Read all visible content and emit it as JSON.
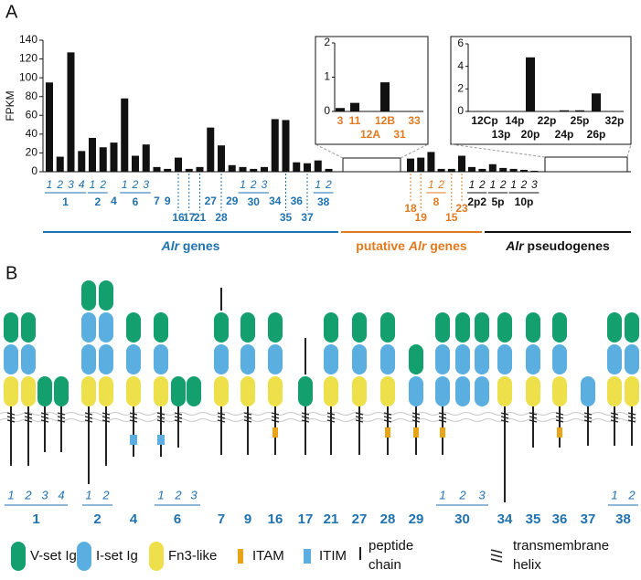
{
  "panel_labels": [
    "A",
    "B"
  ],
  "chart_data": [
    {
      "type": "bar",
      "y_label": "FPKM",
      "ylim": [
        0,
        140
      ],
      "yticks": [
        0,
        20,
        40,
        60,
        80,
        100,
        120,
        140
      ],
      "color": "#111111",
      "categories": [
        "1",
        "2",
        "3",
        "4",
        "1",
        "2",
        "4",
        "1",
        "2",
        "3",
        "7",
        "9",
        "16",
        "17",
        "21",
        "27",
        "28",
        "29",
        "1",
        "2",
        "3",
        "34",
        "35",
        "36",
        "37",
        "1",
        "2",
        "18",
        "19",
        "1",
        "2",
        "15",
        "23",
        "1",
        "2",
        "1",
        "2",
        "1",
        "2",
        "3"
      ],
      "values": [
        95,
        16,
        127,
        22,
        36,
        26,
        31,
        78,
        17,
        29,
        5,
        3,
        15,
        3,
        5,
        47,
        28,
        7,
        5,
        3,
        5,
        56,
        55,
        10,
        9,
        12,
        3,
        14,
        15,
        21,
        3,
        3,
        17,
        5,
        3,
        8,
        4,
        3,
        2,
        1
      ],
      "groups": [
        {
          "label": "1",
          "first": 0,
          "last": 3
        },
        {
          "label": "2",
          "first": 4,
          "last": 5
        },
        {
          "label": "6",
          "first": 7,
          "last": 9
        },
        {
          "label": "30",
          "first": 18,
          "last": 20
        },
        {
          "label": "38",
          "first": 25,
          "last": 26
        },
        {
          "label": "8",
          "first": 29,
          "last": 30
        },
        {
          "label": "2p2",
          "first": 33,
          "last": 34
        },
        {
          "label": "5p",
          "first": 35,
          "last": 36
        },
        {
          "label": "10p",
          "first": 37,
          "last": 39
        }
      ],
      "sections": [
        {
          "parts": [
            {
              "text": "Alr",
              "italic": true
            },
            {
              "text": " genes",
              "italic": false
            }
          ],
          "color": "#1f72b0",
          "first": 0,
          "last": 26
        },
        {
          "parts": [
            {
              "text": "putative ",
              "italic": false
            },
            {
              "text": "Alr",
              "italic": true
            },
            {
              "text": " genes",
              "italic": false
            }
          ],
          "color": "#e07a20",
          "first": 27,
          "last": 32
        },
        {
          "parts": [
            {
              "text": "Alr",
              "italic": true
            },
            {
              "text": " pseudogenes",
              "italic": false
            }
          ],
          "color": "#111111",
          "first": 33,
          "last": 39
        }
      ]
    },
    {
      "type": "bar",
      "ylim": [
        0,
        2
      ],
      "yticks": [
        0,
        1,
        2
      ],
      "color": "#111111",
      "label_color": "#e07a20",
      "categories": [
        "3",
        "11",
        "12A",
        "12B",
        "31",
        "33"
      ],
      "values": [
        0.1,
        0.25,
        0,
        0.85,
        0,
        0
      ]
    },
    {
      "type": "bar",
      "ylim": [
        0,
        6
      ],
      "yticks": [
        0,
        2,
        4,
        6
      ],
      "color": "#111111",
      "label_color": "#111111",
      "categories": [
        "12Cp",
        "13p",
        "14p",
        "20p",
        "22p",
        "24p",
        "25p",
        "26p",
        "32p"
      ],
      "values": [
        0,
        0,
        0,
        4.8,
        0,
        0.1,
        0.1,
        1.6,
        0
      ]
    }
  ],
  "panel_b": {
    "genes": [
      {
        "label": "1",
        "sublabels": [
          "1",
          "2",
          "3",
          "4"
        ]
      },
      {
        "label": "2",
        "sublabels": [
          "1",
          "2"
        ]
      },
      {
        "label": "4"
      },
      {
        "label": "6",
        "sublabels": [
          "1",
          "2",
          "3"
        ]
      },
      {
        "label": "7"
      },
      {
        "label": "9"
      },
      {
        "label": "16"
      },
      {
        "label": "17"
      },
      {
        "label": "21"
      },
      {
        "label": "27"
      },
      {
        "label": "28"
      },
      {
        "label": "29"
      },
      {
        "label": "30",
        "sublabels": [
          "1",
          "2",
          "3"
        ]
      },
      {
        "label": "34"
      },
      {
        "label": "35"
      },
      {
        "label": "36"
      },
      {
        "label": "37"
      },
      {
        "label": "38",
        "sublabels": [
          "1",
          "2"
        ]
      }
    ],
    "legend": [
      {
        "lines": [
          "V-set Ig"
        ]
      },
      {
        "lines": [
          "I-set Ig"
        ]
      },
      {
        "lines": [
          "Fn3-like"
        ]
      },
      {
        "lines": [
          "ITAM"
        ]
      },
      {
        "lines": [
          "ITIM"
        ]
      },
      {
        "lines": [
          "peptide",
          "chain"
        ]
      },
      {
        "lines": [
          "transmembrane",
          "helix"
        ]
      }
    ]
  }
}
